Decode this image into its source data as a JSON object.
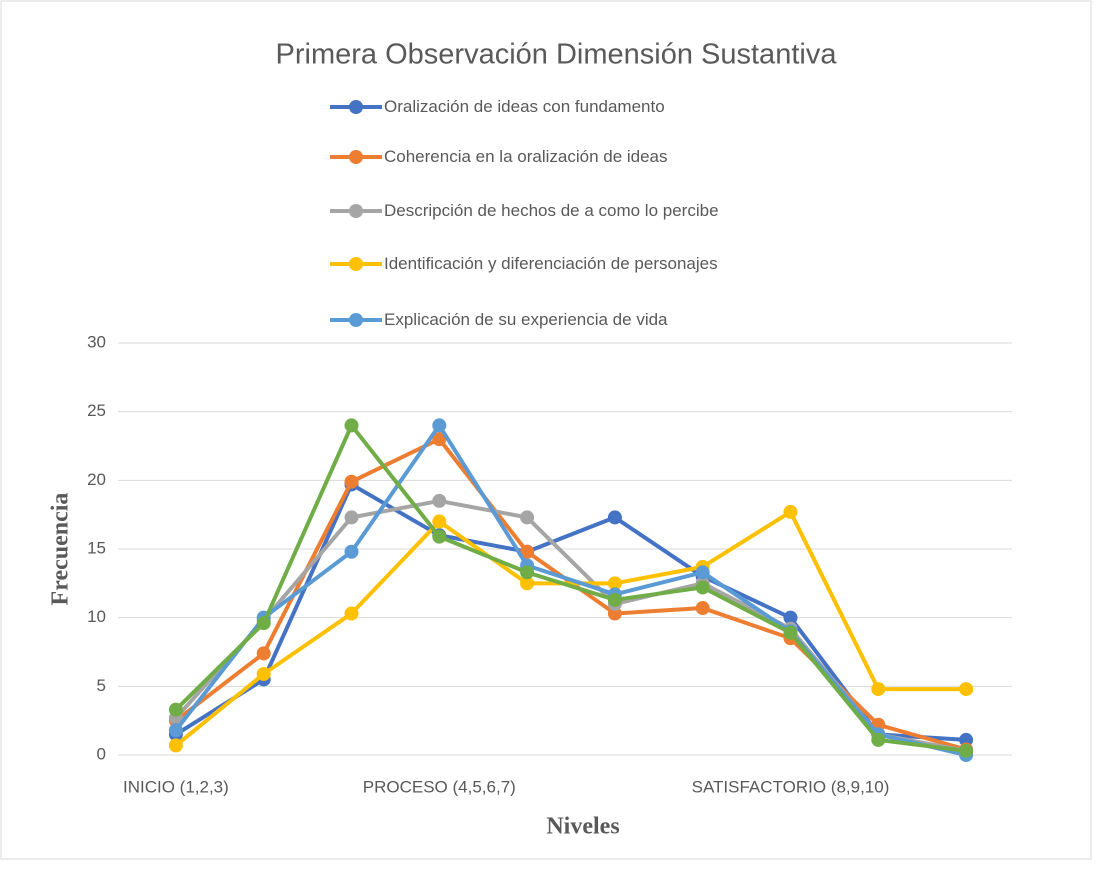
{
  "chart_data": {
    "type": "line",
    "title": "Primera Observación Dimensión Sustantiva",
    "x_label": "Niveles",
    "y_label": "Frecuencia",
    "categories": [
      "INICIO (1,2,3)",
      null,
      null,
      "PROCESO (4,5,6,7)",
      null,
      null,
      null,
      "SATISFACTORIO (8,9,10)",
      null,
      null
    ],
    "series": [
      {
        "name": "Oralización de ideas con fundamento",
        "color": "#4472c4",
        "values": [
          1.5,
          5.5,
          19.7,
          16,
          14.8,
          17.3,
          13,
          10,
          1.5,
          1.1
        ]
      },
      {
        "name": "Coherencia en la oralización de ideas",
        "color": "#ed7d31",
        "values": [
          2.5,
          7.4,
          19.9,
          23,
          14.8,
          10.3,
          10.7,
          8.5,
          2.2,
          0.4
        ]
      },
      {
        "name": "Descripción de hechos de a como lo percibe",
        "color": "#a5a5a5",
        "values": [
          2.7,
          9.8,
          17.3,
          18.5,
          17.3,
          11,
          12.5,
          9.2,
          1.5,
          0.3
        ]
      },
      {
        "name": "Identificación y diferenciación de personajes",
        "color": "#ffc000",
        "values": [
          0.7,
          5.9,
          10.3,
          17,
          12.5,
          12.5,
          13.7,
          17.7,
          4.8,
          4.8
        ]
      },
      {
        "name": "Explicación de su experiencia de vida",
        "color": "#5b9bd5",
        "values": [
          1.8,
          10,
          14.8,
          24,
          13.8,
          11.7,
          13.3,
          9,
          1.5,
          0
        ]
      },
      {
        "color": "#70ad47",
        "values": [
          3.3,
          9.6,
          24,
          15.9,
          13.3,
          11.3,
          12.2,
          8.9,
          1.1,
          0.3
        ]
      }
    ],
    "ylim": [
      0,
      30
    ],
    "yticks": [
      0,
      5,
      10,
      15,
      20,
      25,
      30
    ],
    "grid": true
  }
}
